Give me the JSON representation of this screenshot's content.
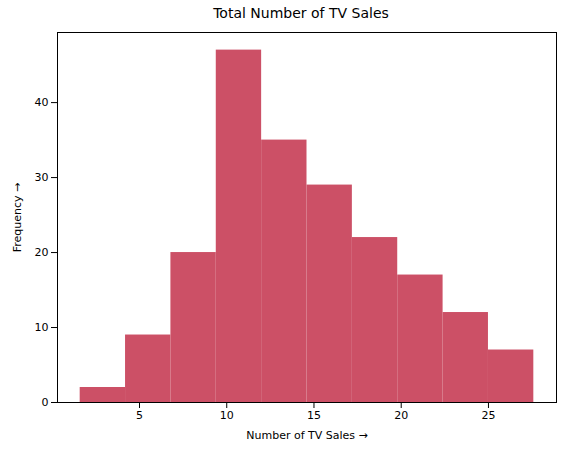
{
  "chart_data": {
    "type": "histogram",
    "title": "Total Number of TV Sales",
    "x_label": "Number of TV Sales",
    "y_label": "Frequency",
    "bins": [
      1.6,
      4.2,
      6.8,
      9.4,
      12.0,
      14.6,
      17.2,
      19.8,
      22.4,
      25.0,
      27.6
    ],
    "values": [
      2,
      9,
      20,
      47,
      35,
      29,
      22,
      17,
      12,
      7
    ],
    "color": "#cc5066",
    "xlim": [
      0.3,
      28.9
    ],
    "xticks": [
      5,
      10,
      15,
      20,
      25
    ],
    "ylim": [
      0,
      49.35
    ],
    "yticks": [
      0,
      10,
      20,
      30,
      40
    ],
    "grid": false
  }
}
